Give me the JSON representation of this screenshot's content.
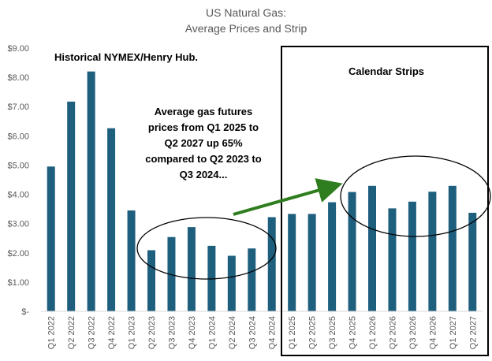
{
  "chart_data": {
    "type": "bar",
    "title": [
      "US Natural Gas:",
      "Average Prices and Strip"
    ],
    "xlabel": "",
    "ylabel": "",
    "ylim": [
      0,
      9
    ],
    "yticks": [
      {
        "value": 9,
        "label": "$9.00"
      },
      {
        "value": 8,
        "label": "$8.00"
      },
      {
        "value": 7,
        "label": "$7.00"
      },
      {
        "value": 6,
        "label": "$6.00"
      },
      {
        "value": 5,
        "label": "$5.00"
      },
      {
        "value": 4,
        "label": "$4.00"
      },
      {
        "value": 3,
        "label": "$3.00"
      },
      {
        "value": 2,
        "label": "$2.00"
      },
      {
        "value": 1,
        "label": "$1.00"
      },
      {
        "value": 0,
        "label": "$-"
      }
    ],
    "grid": false,
    "bar_color": "#1f5f7e",
    "categories": [
      "Q1 2022",
      "Q2 2022",
      "Q3 2022",
      "Q4 2022",
      "Q1 2023",
      "Q2 2023",
      "Q3 2023",
      "Q4 2023",
      "Q1 2024",
      "Q2 2024",
      "Q3 2024",
      "Q4 2024",
      "Q1 2025",
      "Q2 2025",
      "Q3 2025",
      "Q4 2025",
      "Q1 2026",
      "Q2 2026",
      "Q3 2026",
      "Q4 2026",
      "Q1 2027",
      "Q2 2027"
    ],
    "values": [
      4.95,
      7.17,
      8.2,
      6.26,
      3.45,
      2.09,
      2.54,
      2.88,
      2.24,
      1.9,
      2.15,
      3.22,
      3.33,
      3.33,
      3.73,
      4.08,
      4.29,
      3.52,
      3.75,
      4.09,
      4.29,
      3.37
    ],
    "annotations": {
      "historical_label": "Historical NYMEX/Henry Hub.",
      "strip_label": "Calendar Strips",
      "comment_lines": [
        "Average gas futures",
        "prices from Q1 2025 to",
        "Q2 2027 up 65%",
        "compared to Q2 2023 to",
        "Q3 2024..."
      ]
    },
    "colors": {
      "arrow": "#2e7d1e",
      "box": "#000000",
      "ellipse": "#000000"
    }
  }
}
